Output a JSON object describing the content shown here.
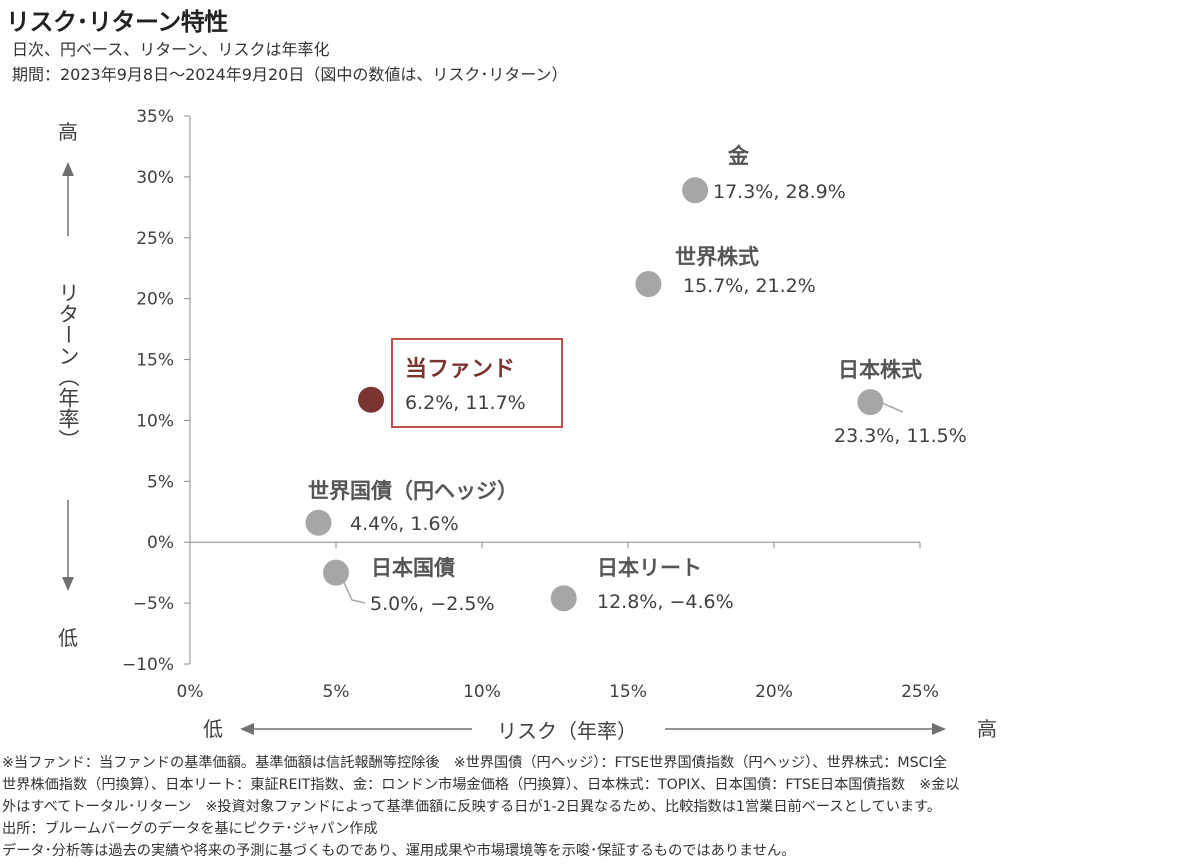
{
  "title": "リスク･リターン特性",
  "subtitle_lines": [
    "日次、円ベース、リターン、リスクは年率化",
    "期間：2023年9月8日～2024年9月20日（図中の数値は、リスク･リターン）"
  ],
  "chart_data": {
    "type": "scatter",
    "xlabel": "リスク（年率）",
    "ylabel": "リターン（年率）",
    "x_axis_low": "低",
    "x_axis_high": "高",
    "y_axis_high": "高",
    "y_axis_low": "低",
    "xlim": [
      0,
      25
    ],
    "ylim": [
      -10,
      35
    ],
    "x_ticks": [
      0,
      5,
      10,
      15,
      20,
      25
    ],
    "x_tick_labels": [
      "0%",
      "5%",
      "10%",
      "15%",
      "20%",
      "25%"
    ],
    "y_ticks": [
      35,
      30,
      25,
      20,
      15,
      10,
      5,
      0,
      -5,
      -10
    ],
    "y_tick_labels": [
      "35%",
      "30%",
      "25%",
      "20%",
      "15%",
      "10%",
      "5%",
      "0%",
      "−5%",
      "−10%"
    ],
    "points": [
      {
        "name": "金",
        "x": 17.3,
        "y": 28.9,
        "label": "17.3%, 28.9%",
        "color": "#a6a6a6",
        "highlight": false
      },
      {
        "name": "世界株式",
        "x": 15.7,
        "y": 21.2,
        "label": "15.7%, 21.2%",
        "color": "#a6a6a6",
        "highlight": false
      },
      {
        "name": "当ファンド",
        "x": 6.2,
        "y": 11.7,
        "label": "6.2%, 11.7%",
        "color": "#7b3530",
        "highlight": true
      },
      {
        "name": "日本株式",
        "x": 23.3,
        "y": 11.5,
        "label": "23.3%, 11.5%",
        "color": "#a6a6a6",
        "highlight": false
      },
      {
        "name": "世界国債（円ヘッジ）",
        "x": 4.4,
        "y": 1.6,
        "label": "4.4%, 1.6%",
        "color": "#a6a6a6",
        "highlight": false
      },
      {
        "name": "日本国債",
        "x": 5.0,
        "y": -2.5,
        "label": "5.0%, −2.5%",
        "color": "#a6a6a6",
        "highlight": false
      },
      {
        "name": "日本リート",
        "x": 12.8,
        "y": -4.6,
        "label": "12.8%, −4.6%",
        "color": "#a6a6a6",
        "highlight": false
      }
    ],
    "highlight_color": "#c0504d",
    "fund_label_color": "#7b3530"
  },
  "notes": [
    "※当ファンド：当ファンドの基準価額。基準価額は信託報酬等控除後　※世界国債（円ヘッジ）：FTSE世界国債指数（円ヘッジ）、世界株式：MSCI全",
    "世界株価指数（円換算）、日本リート：東証REIT指数、金：ロンドン市場金価格（円換算）、日本株式：TOPIX、日本国債：FTSE日本国債指数　※金以",
    "外はすべてトータル･リターン　※投資対象ファンドによって基準価額に反映する日が1-2日異なるため、比較指数は1営業日前ベースとしています。",
    "出所：ブルームバーグのデータを基にピクテ･ジャパン作成",
    "データ･分析等は過去の実績や将来の予測に基づくものであり、運用成果や市場環境等を示唆･保証するものではありません。"
  ]
}
